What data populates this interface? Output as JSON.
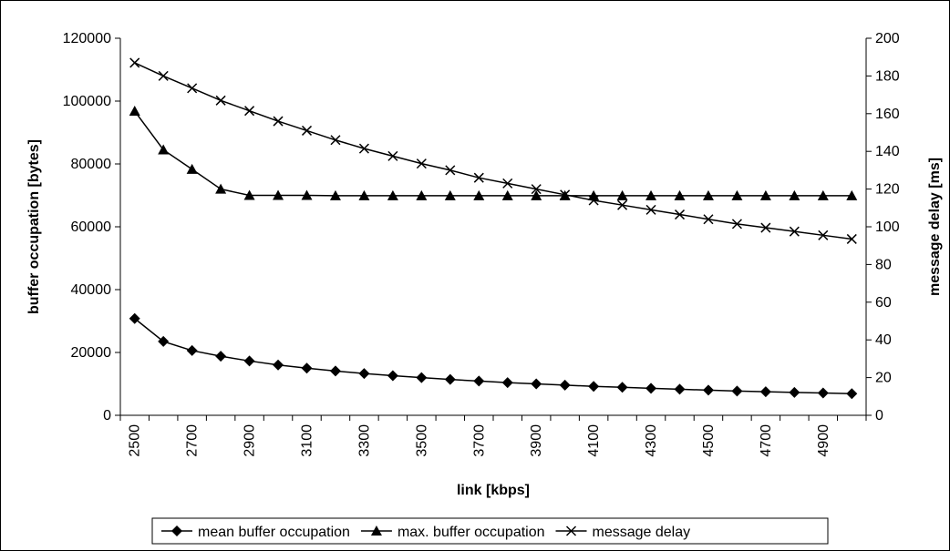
{
  "chart_data": {
    "type": "line",
    "title": "",
    "xlabel": "link [kbps]",
    "ylabel_left": "buffer occupation [bytes]",
    "ylabel_right": "message delay [ms]",
    "x": [
      2500,
      2600,
      2700,
      2800,
      2900,
      3000,
      3100,
      3200,
      3300,
      3400,
      3500,
      3600,
      3700,
      3800,
      3900,
      4000,
      4100,
      4200,
      4300,
      4400,
      4500,
      4600,
      4700,
      4800,
      4900,
      5000
    ],
    "x_tick_labels": [
      "2500",
      "2700",
      "2900",
      "3100",
      "3300",
      "3500",
      "3700",
      "3900",
      "4100",
      "4300",
      "4500",
      "4700",
      "4900"
    ],
    "ylim_left": [
      0,
      120000
    ],
    "yticks_left": [
      "0",
      "20000",
      "40000",
      "60000",
      "80000",
      "100000",
      "120000"
    ],
    "ylim_right": [
      0,
      200
    ],
    "yticks_right": [
      "0",
      "20",
      "40",
      "60",
      "80",
      "100",
      "120",
      "140",
      "160",
      "180",
      "200"
    ],
    "grid": false,
    "legend_position": "bottom",
    "series": [
      {
        "name": "mean buffer occupation",
        "axis": "left",
        "marker": "diamond",
        "values": [
          30800,
          23500,
          20600,
          18800,
          17300,
          16000,
          15000,
          14100,
          13300,
          12600,
          12000,
          11400,
          10900,
          10400,
          10000,
          9600,
          9200,
          8900,
          8600,
          8300,
          8000,
          7700,
          7500,
          7300,
          7100,
          6900
        ]
      },
      {
        "name": "max. buffer occupation",
        "axis": "left",
        "marker": "triangle",
        "values": [
          96800,
          84500,
          78300,
          72000,
          70000,
          70000,
          70000,
          69900,
          69900,
          69900,
          69900,
          69900,
          69900,
          69900,
          69900,
          69900,
          69900,
          69900,
          69900,
          69900,
          69900,
          69900,
          69900,
          69900,
          69900,
          69900
        ]
      },
      {
        "name": "message delay",
        "axis": "right",
        "marker": "x",
        "values": [
          187,
          180,
          173.5,
          167,
          161.5,
          156,
          151,
          146,
          141.5,
          137.5,
          133.5,
          130,
          126,
          123,
          120,
          117,
          114,
          111.5,
          109,
          106.5,
          104,
          101.5,
          99.5,
          97.5,
          95.5,
          93.5
        ]
      }
    ]
  }
}
